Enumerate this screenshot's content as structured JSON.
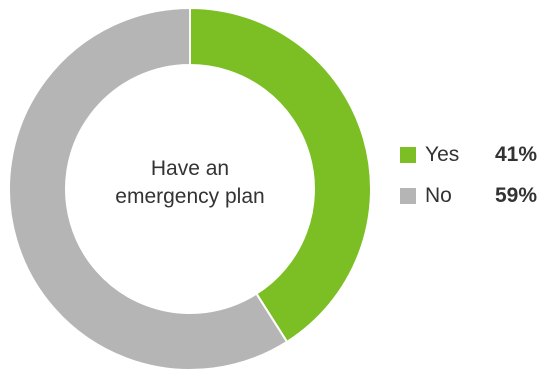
{
  "chart_data": {
    "type": "pie",
    "categories": [
      "Yes",
      "No"
    ],
    "values": [
      41,
      59
    ],
    "value_labels": [
      "41%",
      "59%"
    ],
    "colors": [
      "#7BBF24",
      "#B5B5B5"
    ],
    "center_text": [
      "Have an",
      "emergency plan"
    ],
    "legend": "right"
  }
}
